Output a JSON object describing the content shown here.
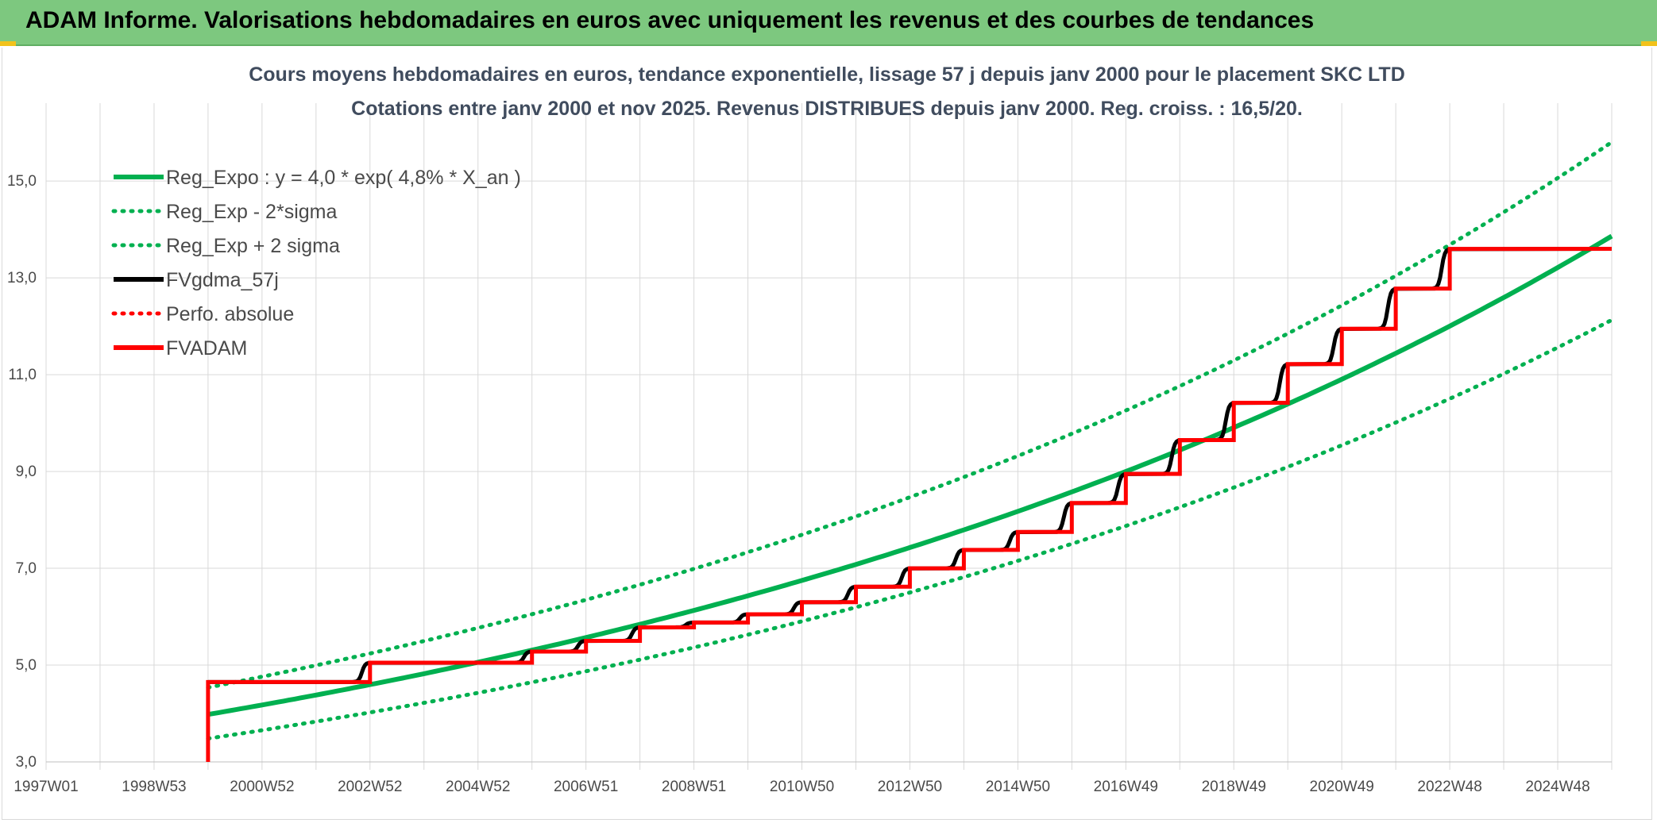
{
  "banner": {
    "title": "ADAM Informe. Valorisations hebdomadaires en euros avec uniquement les revenus et des courbes de tendances"
  },
  "colors": {
    "banner_bg": "#7dc87f",
    "green": "#00b050",
    "red": "#ff0000",
    "black": "#000000",
    "grid": "#d9d9d9"
  },
  "chart_data": {
    "type": "line",
    "title": [
      "Cours moyens hebdomadaires en euros, tendance exponentielle, lissage 57 j depuis janv 2000 pour le placement SKC LTD",
      "Cotations entre janv 2000 et nov 2025. Revenus DISTRIBUES depuis janv 2000. Reg. croiss. : 16,5/20."
    ],
    "x_tick_labels": [
      "1997W01",
      "1998W53",
      "2000W52",
      "2002W52",
      "2004W52",
      "2006W51",
      "2008W51",
      "2010W50",
      "2012W50",
      "2014W50",
      "2016W49",
      "2018W49",
      "2020W49",
      "2022W48",
      "2024W48"
    ],
    "x_range_years": [
      1997.0,
      2026.0
    ],
    "y_tick_labels": [
      "3,0",
      "5,0",
      "7,0",
      "9,0",
      "11,0",
      "13,0",
      "15,0"
    ],
    "ylim": [
      3.0,
      16.2
    ],
    "grid": true,
    "legend_position": "top-left",
    "legend": [
      {
        "label": "Reg_Expo : y = 4,0 * exp( 4,8% *  X_an )",
        "color": "#00b050",
        "style": "solid"
      },
      {
        "label": "Reg_Exp - 2*sigma",
        "color": "#00b050",
        "style": "dotted"
      },
      {
        "label": "Reg_Exp + 2 sigma",
        "color": "#00b050",
        "style": "dotted"
      },
      {
        "label": "FVgdma_57j",
        "color": "#000000",
        "style": "solid"
      },
      {
        "label": "Perfo. absolue",
        "color": "#ff0000",
        "style": "dotted"
      },
      {
        "label": "FVADAM",
        "color": "#ff0000",
        "style": "solid"
      }
    ],
    "regression": {
      "a": 3.98,
      "rate": 0.048,
      "start_year": 2000.0,
      "factor_minus": 0.875,
      "factor_plus": 1.14
    },
    "fvadam_steps": [
      {
        "year": 2000.0,
        "value": 4.65
      },
      {
        "year": 2003.0,
        "value": 5.05
      },
      {
        "year": 2006.0,
        "value": 5.28
      },
      {
        "year": 2007.0,
        "value": 5.5
      },
      {
        "year": 2008.0,
        "value": 5.78
      },
      {
        "year": 2009.0,
        "value": 5.88
      },
      {
        "year": 2010.0,
        "value": 6.05
      },
      {
        "year": 2011.0,
        "value": 6.3
      },
      {
        "year": 2012.0,
        "value": 6.62
      },
      {
        "year": 2013.0,
        "value": 7.0
      },
      {
        "year": 2014.0,
        "value": 7.38
      },
      {
        "year": 2015.0,
        "value": 7.75
      },
      {
        "year": 2016.0,
        "value": 8.35
      },
      {
        "year": 2017.0,
        "value": 8.95
      },
      {
        "year": 2018.0,
        "value": 9.65
      },
      {
        "year": 2019.0,
        "value": 10.42
      },
      {
        "year": 2020.0,
        "value": 11.22
      },
      {
        "year": 2021.0,
        "value": 11.95
      },
      {
        "year": 2022.0,
        "value": 12.78
      },
      {
        "year": 2023.0,
        "value": 13.6
      }
    ],
    "fvadam_start": {
      "year": 2000.0,
      "value": 3.0
    },
    "fvadam_end_year": 2026.0
  }
}
